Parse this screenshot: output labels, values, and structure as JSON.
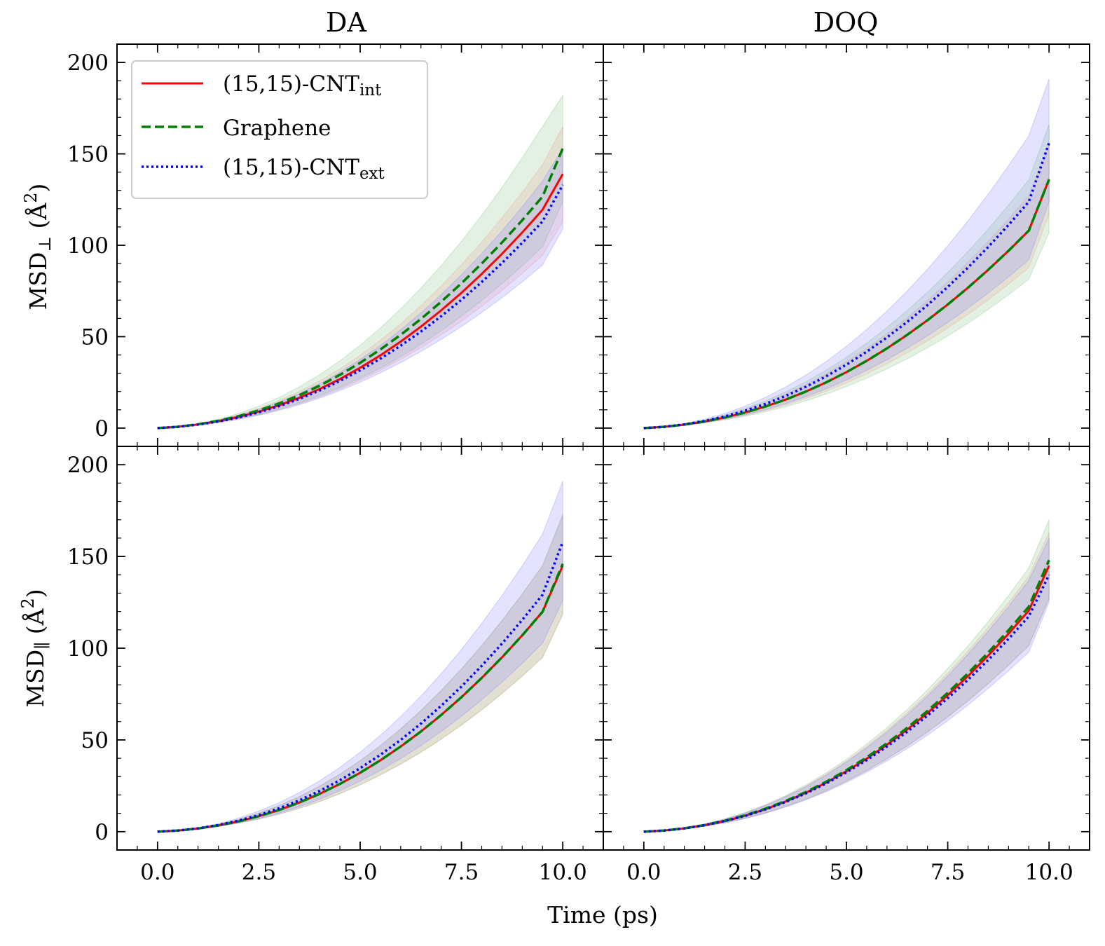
{
  "chart_data": {
    "type": "line",
    "columns": [
      {
        "title": "DA"
      },
      {
        "title": "DOQ"
      }
    ],
    "xlabel": "Time (ps)",
    "ylabels": [
      {
        "main": "MSD",
        "sub": "⊥",
        "unit_open": " (",
        "unit": "Å",
        "sup": "2",
        "unit_close": ")"
      },
      {
        "main": "MSD",
        "sub": "∥",
        "unit_open": " (",
        "unit": "Å",
        "sup": "2",
        "unit_close": ")"
      }
    ],
    "xlim": [
      -1.0,
      11.0
    ],
    "xticks": [
      0.0,
      2.5,
      5.0,
      7.5,
      10.0
    ],
    "xtick_labels": [
      "0.0",
      "2.5",
      "5.0",
      "7.5",
      "10.0"
    ],
    "ylim": [
      -10,
      210
    ],
    "yticks": [
      0,
      50,
      100,
      150,
      200
    ],
    "ytick_labels": [
      "0",
      "50",
      "100",
      "150",
      "200"
    ],
    "legend": {
      "placement": "top-left",
      "panel": "DA perpendicular",
      "entries": [
        {
          "main": "(15,15)-CNT",
          "sub": "int",
          "style": "solid",
          "color": "#ff0000"
        },
        {
          "main": "Graphene",
          "sub": "",
          "style": "dashed",
          "color": "#008000"
        },
        {
          "main": "(15,15)-CNT",
          "sub": "ext",
          "style": "dotted",
          "color": "#0000ff"
        }
      ]
    },
    "band_colors": [
      "#ff9999",
      "#80c080",
      "#8080ff"
    ],
    "x": [
      0,
      0.5,
      1,
      1.5,
      2,
      2.5,
      3,
      3.5,
      4,
      4.5,
      5,
      5.5,
      6,
      6.5,
      7,
      7.5,
      8,
      8.5,
      9,
      9.5,
      10
    ],
    "panels": [
      {
        "name": "DA perpendicular",
        "series": [
          {
            "name": "(15,15)-CNT int",
            "values": [
              0,
              0.7,
              2.0,
              3.8,
              6.1,
              9.0,
              12.5,
              16.6,
              21.4,
              26.8,
              33.0,
              39.8,
              47.3,
              55.5,
              64.4,
              74.0,
              84.3,
              95.3,
              107.0,
              119.4,
              139.0
            ],
            "upper": [
              0,
              0.8,
              2.3,
              4.5,
              7.3,
              10.8,
              15.0,
              20.0,
              25.8,
              32.4,
              39.8,
              48.0,
              57.0,
              67.0,
              77.8,
              89.4,
              101.8,
              115.0,
              129.0,
              144.0,
              165.0
            ],
            "lower": [
              0,
              0.6,
              1.7,
              3.2,
              5.0,
              7.3,
              10.1,
              13.3,
              17.0,
              21.3,
              26.2,
              31.6,
              37.6,
              44.0,
              51.0,
              58.5,
              66.6,
              75.3,
              84.6,
              94.4,
              113.0
            ]
          },
          {
            "name": "Graphene",
            "values": [
              0,
              0.7,
              2.1,
              4.0,
              6.5,
              9.7,
              13.5,
              18.0,
              23.2,
              29.1,
              35.7,
              43.0,
              51.0,
              59.7,
              69.1,
              79.2,
              90.0,
              101.5,
              113.7,
              126.6,
              153.0
            ],
            "upper": [
              0,
              0.8,
              2.5,
              4.8,
              8.0,
              12.0,
              16.8,
              22.5,
              29.2,
              36.8,
              45.3,
              54.8,
              65.2,
              76.6,
              88.9,
              102.2,
              116.4,
              131.6,
              147.8,
              164.9,
              182.0
            ],
            "lower": [
              0,
              0.6,
              1.7,
              3.2,
              5.1,
              7.5,
              10.4,
              13.8,
              17.7,
              22.2,
              27.2,
              32.8,
              39.0,
              45.8,
              53.2,
              61.2,
              69.8,
              79.0,
              88.8,
              99.2,
              124.0
            ]
          },
          {
            "name": "(15,15)-CNT ext",
            "values": [
              0,
              0.7,
              1.9,
              3.6,
              5.8,
              8.6,
              12.0,
              16.0,
              20.6,
              25.8,
              31.6,
              38.0,
              45.1,
              52.8,
              61.2,
              70.2,
              79.9,
              90.3,
              101.3,
              113.0,
              133.0
            ],
            "upper": [
              0,
              0.8,
              2.2,
              4.2,
              6.9,
              10.2,
              14.2,
              18.9,
              24.3,
              30.5,
              37.5,
              45.2,
              53.7,
              63.0,
              73.0,
              83.8,
              95.5,
              107.9,
              121.1,
              135.1,
              153.0
            ],
            "lower": [
              0,
              0.6,
              1.6,
              3.0,
              4.8,
              7.0,
              9.7,
              12.8,
              16.4,
              20.5,
              25.1,
              30.2,
              35.8,
              41.9,
              48.5,
              55.6,
              63.2,
              71.3,
              80.0,
              89.2,
              109.0
            ]
          }
        ]
      },
      {
        "name": "DOQ perpendicular",
        "series": [
          {
            "name": "(15,15)-CNT int",
            "values": [
              0,
              0.7,
              1.9,
              3.6,
              5.8,
              8.5,
              11.8,
              15.6,
              20.0,
              25.0,
              30.6,
              36.8,
              43.6,
              51.0,
              59.0,
              67.6,
              76.8,
              86.6,
              97.0,
              108.0,
              136.0
            ],
            "upper": [
              0,
              0.8,
              2.2,
              4.2,
              6.8,
              10.1,
              14.0,
              18.6,
              23.8,
              29.7,
              36.3,
              43.6,
              51.6,
              60.3,
              69.7,
              79.8,
              90.6,
              102.1,
              114.3,
              127.2,
              155.0
            ],
            "lower": [
              0,
              0.6,
              1.6,
              3.0,
              4.8,
              7.0,
              9.6,
              12.7,
              16.2,
              20.2,
              24.7,
              29.7,
              35.2,
              41.2,
              47.7,
              54.7,
              62.2,
              70.2,
              78.7,
              87.7,
              117.0
            ]
          },
          {
            "name": "Graphene",
            "values": [
              0,
              0.7,
              1.9,
              3.6,
              5.8,
              8.5,
              11.8,
              15.6,
              20.0,
              25.0,
              30.6,
              36.8,
              43.6,
              51.0,
              59.0,
              67.6,
              76.8,
              86.6,
              97.0,
              108.0,
              136.0
            ],
            "upper": [
              0,
              0.8,
              2.3,
              4.4,
              7.2,
              10.7,
              14.9,
              19.8,
              25.4,
              31.7,
              38.7,
              46.5,
              55.0,
              64.3,
              74.3,
              85.1,
              96.6,
              108.9,
              122.0,
              135.8,
              166.0
            ],
            "lower": [
              0,
              0.6,
              1.5,
              2.8,
              4.5,
              6.5,
              8.9,
              11.7,
              14.9,
              18.6,
              22.7,
              27.3,
              32.4,
              37.9,
              43.9,
              50.4,
              57.4,
              64.9,
              72.9,
              81.4,
              107.0
            ]
          },
          {
            "name": "(15,15)-CNT ext",
            "values": [
              0,
              0.7,
              2.0,
              3.9,
              6.4,
              9.5,
              13.2,
              17.6,
              22.6,
              28.3,
              34.7,
              41.8,
              49.6,
              58.1,
              67.3,
              77.2,
              87.8,
              99.1,
              111.1,
              123.8,
              156.0
            ],
            "upper": [
              0,
              0.8,
              2.5,
              4.9,
              8.0,
              12.0,
              16.8,
              22.5,
              29.0,
              36.4,
              44.7,
              53.9,
              64.0,
              75.0,
              86.9,
              99.7,
              113.4,
              128.0,
              143.5,
              159.9,
              191.0
            ],
            "lower": [
              0,
              0.6,
              1.6,
              3.1,
              5.0,
              7.3,
              10.1,
              13.4,
              17.2,
              21.5,
              26.3,
              31.6,
              37.4,
              43.7,
              50.5,
              57.8,
              65.6,
              73.9,
              82.7,
              92.0,
              124.0
            ]
          }
        ]
      },
      {
        "name": "DA parallel",
        "series": [
          {
            "name": "(15,15)-CNT int",
            "values": [
              0,
              0.6,
              1.7,
              3.4,
              5.6,
              8.4,
              11.8,
              15.9,
              20.6,
              26.0,
              32.1,
              38.9,
              46.4,
              54.6,
              63.6,
              73.3,
              83.8,
              95.0,
              107.0,
              119.8,
              145.0
            ],
            "upper": [
              0,
              0.7,
              2.0,
              4.0,
              6.7,
              10.1,
              14.2,
              19.1,
              24.8,
              31.3,
              38.7,
              46.9,
              56.0,
              66.0,
              76.9,
              88.7,
              101.4,
              115.0,
              129.5,
              144.9,
              172.0
            ],
            "lower": [
              0,
              0.5,
              1.4,
              2.8,
              4.6,
              6.8,
              9.5,
              12.7,
              16.4,
              20.7,
              25.5,
              30.9,
              36.8,
              43.3,
              50.4,
              58.1,
              66.4,
              75.3,
              84.8,
              94.9,
              118.0
            ]
          },
          {
            "name": "Graphene",
            "values": [
              0,
              0.6,
              1.7,
              3.4,
              5.6,
              8.4,
              11.8,
              15.9,
              20.6,
              26.0,
              32.1,
              38.9,
              46.4,
              54.6,
              63.6,
              73.3,
              83.8,
              95.0,
              107.0,
              119.8,
              146.0
            ],
            "upper": [
              0,
              0.7,
              2.0,
              4.0,
              6.7,
              10.1,
              14.2,
              19.1,
              24.8,
              31.3,
              38.7,
              46.9,
              56.0,
              66.0,
              76.9,
              88.7,
              101.4,
              115.0,
              129.5,
              144.9,
              173.0
            ],
            "lower": [
              0,
              0.5,
              1.4,
              2.8,
              4.6,
              6.8,
              9.5,
              12.7,
              16.4,
              20.7,
              25.5,
              30.9,
              36.8,
              43.3,
              50.4,
              58.1,
              66.4,
              75.3,
              84.8,
              94.9,
              119.0
            ]
          },
          {
            "name": "(15,15)-CNT ext",
            "values": [
              0,
              0.6,
              1.8,
              3.6,
              6.0,
              9.0,
              12.7,
              17.1,
              22.2,
              28.0,
              34.6,
              41.9,
              50.0,
              58.9,
              68.6,
              79.1,
              90.4,
              102.5,
              115.4,
              129.1,
              158.0
            ],
            "upper": [
              0,
              0.7,
              2.2,
              4.4,
              7.4,
              11.2,
              15.8,
              21.3,
              27.7,
              35.0,
              43.3,
              52.5,
              62.7,
              73.9,
              86.1,
              99.3,
              113.5,
              128.7,
              144.9,
              162.1,
              191.0
            ],
            "lower": [
              0,
              0.5,
              1.4,
              2.9,
              4.8,
              7.2,
              10.1,
              13.6,
              17.7,
              22.3,
              27.6,
              33.4,
              39.8,
              46.9,
              54.6,
              62.9,
              71.9,
              81.5,
              91.8,
              102.7,
              126.0
            ]
          }
        ]
      },
      {
        "name": "DOQ parallel",
        "series": [
          {
            "name": "(15,15)-CNT int",
            "values": [
              0,
              0.6,
              1.8,
              3.5,
              5.8,
              8.7,
              12.2,
              16.4,
              21.2,
              26.7,
              32.9,
              39.8,
              47.4,
              55.7,
              64.7,
              74.4,
              84.8,
              96.0,
              107.9,
              120.5,
              145.0
            ],
            "upper": [
              0,
              0.7,
              2.1,
              4.1,
              6.8,
              10.2,
              14.3,
              19.2,
              24.8,
              31.2,
              38.4,
              46.4,
              55.2,
              64.8,
              75.2,
              86.4,
              98.4,
              111.2,
              124.8,
              139.2,
              163.0
            ],
            "lower": [
              0,
              0.5,
              1.5,
              2.9,
              4.8,
              7.2,
              10.1,
              13.6,
              17.6,
              22.2,
              27.4,
              33.2,
              39.6,
              46.6,
              54.2,
              62.4,
              71.2,
              80.6,
              90.6,
              101.2,
              127.0
            ]
          },
          {
            "name": "Graphene",
            "values": [
              0,
              0.6,
              1.8,
              3.6,
              5.9,
              8.9,
              12.5,
              16.7,
              21.6,
              27.2,
              33.5,
              40.5,
              48.2,
              56.6,
              65.8,
              75.7,
              86.3,
              97.7,
              109.8,
              122.6,
              148.0
            ],
            "upper": [
              0,
              0.7,
              2.1,
              4.2,
              7.0,
              10.5,
              14.7,
              19.7,
              25.5,
              32.1,
              39.5,
              47.7,
              56.7,
              66.6,
              77.3,
              88.9,
              101.3,
              114.6,
              128.7,
              143.7,
              170.0
            ],
            "lower": [
              0,
              0.5,
              1.5,
              3.0,
              4.9,
              7.3,
              10.3,
              13.8,
              17.8,
              22.4,
              27.6,
              33.4,
              39.8,
              46.8,
              54.4,
              62.6,
              71.4,
              80.8,
              90.9,
              101.6,
              127.0
            ]
          },
          {
            "name": "(15,15)-CNT ext",
            "values": [
              0,
              0.6,
              1.8,
              3.5,
              5.8,
              8.6,
              12.1,
              16.2,
              20.9,
              26.3,
              32.3,
              39.0,
              46.4,
              54.5,
              63.3,
              72.7,
              82.8,
              93.6,
              105.1,
              117.3,
              140.0
            ],
            "upper": [
              0,
              0.7,
              2.1,
              4.1,
              6.8,
              10.1,
              14.2,
              19.0,
              24.5,
              30.8,
              37.9,
              45.7,
              54.3,
              63.7,
              73.9,
              84.9,
              96.7,
              109.3,
              122.7,
              136.9,
              160.0
            ],
            "lower": [
              0,
              0.5,
              1.5,
              2.9,
              4.8,
              7.1,
              10.0,
              13.4,
              17.3,
              21.8,
              26.8,
              32.4,
              38.6,
              45.3,
              52.6,
              60.5,
              69.0,
              78.1,
              87.7,
              97.9,
              125.0
            ]
          }
        ]
      }
    ]
  }
}
